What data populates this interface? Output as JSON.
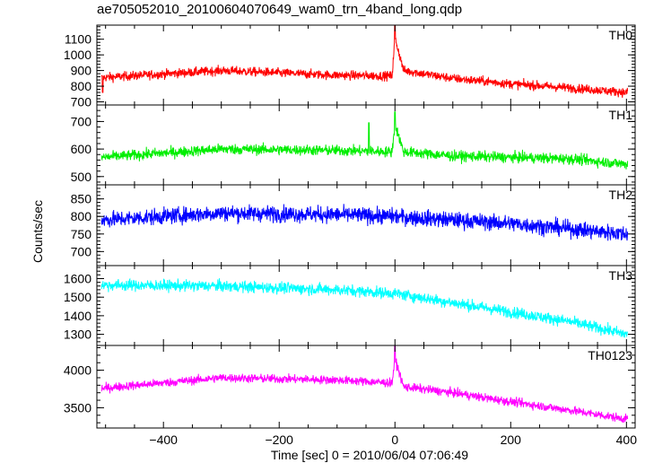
{
  "title": "ae705052010_20100604070649_wam0_trn_4band_long.qdp",
  "chart_data": {
    "type": "line",
    "xlabel": "Time [sec] 0 = 2010/06/04 07:06:49",
    "ylabel": "Counts/sec",
    "xlim": [
      -515,
      415
    ],
    "x_ticks": [
      -400,
      -200,
      0,
      200,
      400
    ],
    "x_tick_labels": [
      "−400",
      "−200",
      "0",
      "200",
      "400"
    ],
    "panels": [
      {
        "name": "TH0",
        "color": "#ff0000",
        "ylim": [
          680,
          1190
        ],
        "y_ticks": [
          700,
          800,
          900,
          1000,
          1100
        ],
        "trend": [
          [
            -505,
            855
          ],
          [
            -300,
            900
          ],
          [
            -100,
            870
          ],
          [
            -5,
            865
          ],
          [
            0,
            1110
          ],
          [
            15,
            900
          ],
          [
            100,
            850
          ],
          [
            200,
            815
          ],
          [
            300,
            790
          ],
          [
            400,
            760
          ]
        ],
        "noise": 38,
        "spikes": [
          {
            "x": 0,
            "y": 1190
          },
          {
            "x": -505,
            "y": 760
          }
        ]
      },
      {
        "name": "TH1",
        "color": "#00ee00",
        "ylim": [
          470,
          760
        ],
        "y_ticks": [
          500,
          600,
          700
        ],
        "trend": [
          [
            -505,
            570
          ],
          [
            -300,
            600
          ],
          [
            -100,
            595
          ],
          [
            -5,
            590
          ],
          [
            0,
            690
          ],
          [
            15,
            590
          ],
          [
            100,
            575
          ],
          [
            200,
            570
          ],
          [
            300,
            565
          ],
          [
            400,
            545
          ]
        ],
        "noise": 25,
        "spikes": [
          {
            "x": 0,
            "y": 735
          },
          {
            "x": -45,
            "y": 695
          }
        ]
      },
      {
        "name": "TH2",
        "color": "#0000ff",
        "ylim": [
          660,
          890
        ],
        "y_ticks": [
          700,
          750,
          800,
          850
        ],
        "trend": [
          [
            -505,
            790
          ],
          [
            -300,
            810
          ],
          [
            -100,
            805
          ],
          [
            0,
            800
          ],
          [
            100,
            790
          ],
          [
            200,
            780
          ],
          [
            300,
            765
          ],
          [
            400,
            750
          ]
        ],
        "noise": 30,
        "spikes": []
      },
      {
        "name": "TH3",
        "color": "#00ffff",
        "ylim": [
          1240,
          1670
        ],
        "y_ticks": [
          1300,
          1400,
          1500,
          1600
        ],
        "trend": [
          [
            -505,
            1565
          ],
          [
            -300,
            1560
          ],
          [
            -100,
            1540
          ],
          [
            0,
            1520
          ],
          [
            100,
            1470
          ],
          [
            200,
            1420
          ],
          [
            300,
            1370
          ],
          [
            400,
            1300
          ]
        ],
        "noise": 40,
        "spikes": []
      },
      {
        "name": "TH0123",
        "color": "#ff00ff",
        "ylim": [
          3230,
          4330
        ],
        "y_ticks": [
          3500,
          4000
        ],
        "trend": [
          [
            -505,
            3760
          ],
          [
            -300,
            3900
          ],
          [
            -100,
            3870
          ],
          [
            -5,
            3830
          ],
          [
            0,
            4150
          ],
          [
            15,
            3780
          ],
          [
            100,
            3700
          ],
          [
            200,
            3580
          ],
          [
            300,
            3470
          ],
          [
            400,
            3350
          ]
        ],
        "noise": 75,
        "spikes": [
          {
            "x": 0,
            "y": 4320
          }
        ]
      }
    ]
  }
}
